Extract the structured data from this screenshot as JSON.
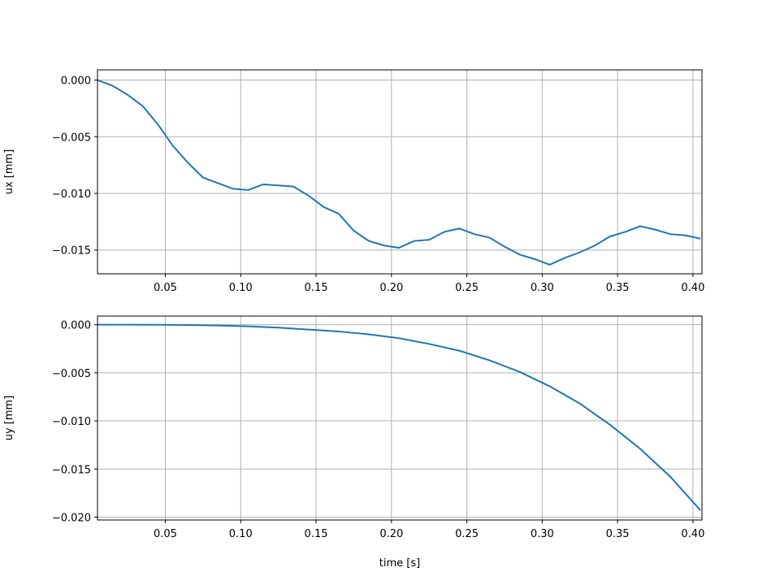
{
  "chart_data": [
    {
      "type": "line",
      "ylabel": "ux [mm]",
      "x": [
        0.005,
        0.015,
        0.025,
        0.035,
        0.045,
        0.055,
        0.065,
        0.075,
        0.085,
        0.095,
        0.105,
        0.115,
        0.125,
        0.135,
        0.145,
        0.155,
        0.165,
        0.175,
        0.185,
        0.195,
        0.205,
        0.215,
        0.225,
        0.235,
        0.245,
        0.255,
        0.265,
        0.275,
        0.285,
        0.295,
        0.305,
        0.315,
        0.325,
        0.335,
        0.345,
        0.355,
        0.365,
        0.375,
        0.385,
        0.395,
        0.405
      ],
      "series": [
        {
          "color": "#1f77b4",
          "values": [
            0,
            -0.0005,
            -0.0013,
            -0.0023,
            -0.0039,
            -0.0058,
            -0.0073,
            -0.0086,
            -0.0091,
            -0.0096,
            -0.0097,
            -0.0092,
            -0.0093,
            -0.0094,
            -0.0102,
            -0.0112,
            -0.0118,
            -0.0133,
            -0.0142,
            -0.0146,
            -0.0148,
            -0.0142,
            -0.0141,
            -0.0134,
            -0.0131,
            -0.0136,
            -0.0139,
            -0.0147,
            -0.0154,
            -0.0158,
            -0.0163,
            -0.0157,
            -0.0152,
            -0.0146,
            -0.0138,
            -0.0134,
            -0.0129,
            -0.0132,
            -0.0136,
            -0.0137,
            -0.014
          ]
        }
      ],
      "xlim": [
        0.005,
        0.406
      ],
      "ylim": [
        -0.0171,
        0.0009
      ],
      "xticks": [
        {
          "value": 0.05,
          "label": "0.05"
        },
        {
          "value": 0.1,
          "label": "0.10"
        },
        {
          "value": 0.15,
          "label": "0.15"
        },
        {
          "value": 0.2,
          "label": "0.20"
        },
        {
          "value": 0.25,
          "label": "0.25"
        },
        {
          "value": 0.3,
          "label": "0.30"
        },
        {
          "value": 0.35,
          "label": "0.35"
        },
        {
          "value": 0.4,
          "label": "0.40"
        }
      ],
      "yticks": [
        {
          "value": 0,
          "label": "0.000"
        },
        {
          "value": -0.005,
          "label": "−0.005"
        },
        {
          "value": -0.01,
          "label": "−0.010"
        },
        {
          "value": -0.015,
          "label": "−0.015"
        }
      ],
      "grid": true
    },
    {
      "type": "line",
      "xlabel": "time [s]",
      "ylabel": "uy [mm]",
      "x": [
        0.005,
        0.025,
        0.045,
        0.065,
        0.085,
        0.105,
        0.125,
        0.145,
        0.165,
        0.185,
        0.205,
        0.225,
        0.245,
        0.265,
        0.285,
        0.305,
        0.325,
        0.345,
        0.365,
        0.385,
        0.405
      ],
      "series": [
        {
          "color": "#1f77b4",
          "values": [
            0,
            0,
            -1e-05,
            -3e-05,
            -8e-05,
            -0.00017,
            -0.0003,
            -0.0005,
            -0.0007,
            -0.001,
            -0.0014,
            -0.002,
            -0.0027,
            -0.0037,
            -0.0049,
            -0.0064,
            -0.0082,
            -0.0104,
            -0.0129,
            -0.0158,
            -0.0193
          ]
        }
      ],
      "xlim": [
        0.005,
        0.406
      ],
      "ylim": [
        -0.0203,
        0.0009
      ],
      "xticks": [
        {
          "value": 0.05,
          "label": "0.05"
        },
        {
          "value": 0.1,
          "label": "0.10"
        },
        {
          "value": 0.15,
          "label": "0.15"
        },
        {
          "value": 0.2,
          "label": "0.20"
        },
        {
          "value": 0.25,
          "label": "0.25"
        },
        {
          "value": 0.3,
          "label": "0.30"
        },
        {
          "value": 0.35,
          "label": "0.35"
        },
        {
          "value": 0.4,
          "label": "0.40"
        }
      ],
      "yticks": [
        {
          "value": 0,
          "label": "0.000"
        },
        {
          "value": -0.005,
          "label": "−0.005"
        },
        {
          "value": -0.01,
          "label": "−0.010"
        },
        {
          "value": -0.015,
          "label": "−0.015"
        },
        {
          "value": -0.02,
          "label": "−0.020"
        }
      ],
      "grid": true
    }
  ]
}
